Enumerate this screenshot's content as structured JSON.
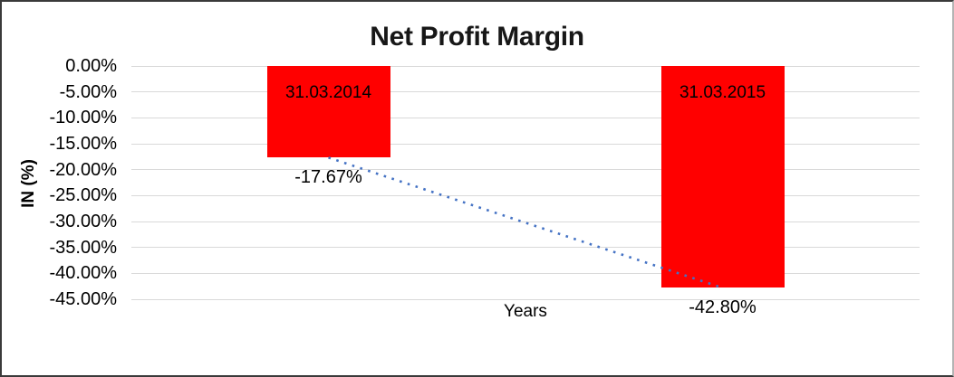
{
  "window": {
    "background": "#ffffff",
    "frame_border_color": "#3a3a3a"
  },
  "chart_data": {
    "type": "bar",
    "title": "Net Profit Margin",
    "xlabel": "Years",
    "ylabel": "IN (%)",
    "categories": [
      "31.03.2014",
      "31.03.2015"
    ],
    "values": [
      -17.67,
      -42.8
    ],
    "value_labels": [
      "-17.67%",
      "-42.80%"
    ],
    "ylim": [
      -45,
      0
    ],
    "ytick_values": [
      0,
      -5,
      -10,
      -15,
      -20,
      -25,
      -30,
      -35,
      -40,
      -45
    ],
    "ytick_labels": [
      "0.00%",
      "-5.00%",
      "-10.00%",
      "-15.00%",
      "-20.00%",
      "-25.00%",
      "-30.00%",
      "-35.00%",
      "-40.00%",
      "-45.00%"
    ],
    "grid": true,
    "legend": "none",
    "bar_color": "#ff0000",
    "gridline_color": "#d9d9d9",
    "category_label_position": "inside-top",
    "value_label_position": "below-bar-end",
    "trendline": {
      "type": "linear",
      "style": "dotted",
      "color": "#4472c4",
      "connects_values": [
        -17.67,
        -42.8
      ]
    }
  }
}
